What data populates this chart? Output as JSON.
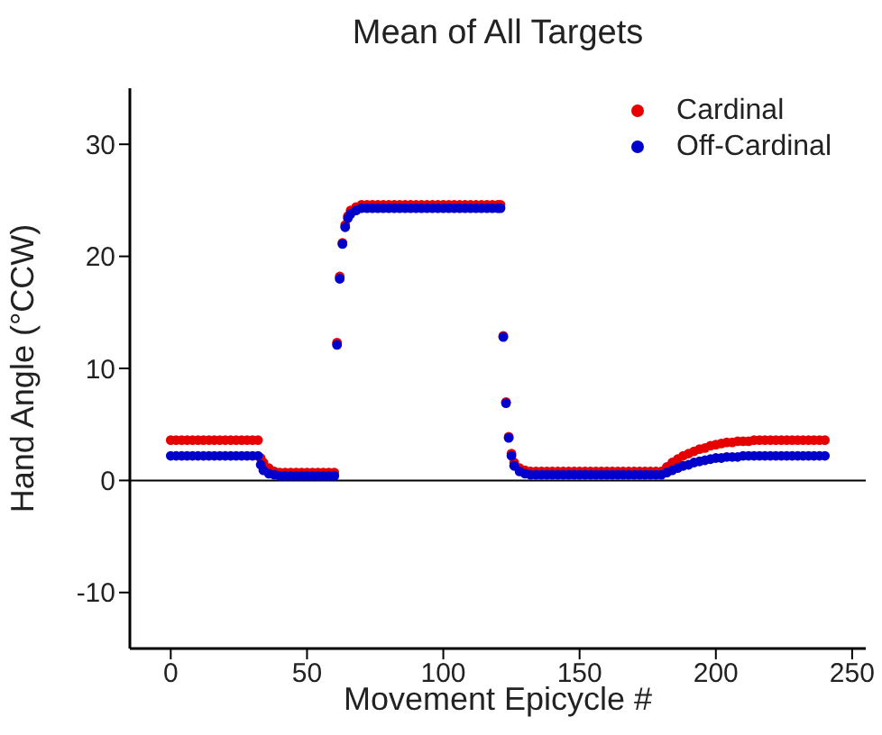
{
  "chart_data": {
    "type": "scatter",
    "title": "Mean of All Targets",
    "xlabel": "Movement Epicycle #",
    "ylabel": "Hand Angle (°CCW)",
    "x": [
      0,
      2,
      4,
      6,
      8,
      10,
      12,
      14,
      16,
      18,
      20,
      22,
      24,
      26,
      28,
      30,
      32,
      33,
      34,
      36,
      38,
      40,
      42,
      44,
      46,
      48,
      50,
      52,
      54,
      56,
      58,
      60,
      61,
      62,
      63,
      64,
      65,
      66,
      68,
      70,
      72,
      74,
      76,
      78,
      80,
      82,
      84,
      86,
      88,
      90,
      92,
      94,
      96,
      98,
      100,
      102,
      104,
      106,
      108,
      110,
      112,
      114,
      116,
      118,
      120,
      121,
      122,
      123,
      124,
      125,
      126,
      128,
      130,
      132,
      134,
      136,
      138,
      140,
      142,
      144,
      146,
      148,
      150,
      152,
      154,
      156,
      158,
      160,
      162,
      164,
      166,
      168,
      170,
      172,
      174,
      176,
      178,
      180,
      182,
      184,
      186,
      188,
      190,
      192,
      194,
      196,
      198,
      200,
      202,
      204,
      206,
      208,
      210,
      212,
      214,
      216,
      218,
      220,
      222,
      224,
      226,
      228,
      230,
      232,
      234,
      236,
      238,
      240
    ],
    "series": [
      {
        "name": "Cardinal",
        "color": "#e60000",
        "values": [
          3.6,
          3.6,
          3.6,
          3.6,
          3.6,
          3.6,
          3.6,
          3.6,
          3.6,
          3.6,
          3.6,
          3.6,
          3.6,
          3.6,
          3.6,
          3.6,
          3.6,
          2.0,
          1.6,
          1.1,
          0.8,
          0.7,
          0.7,
          0.7,
          0.7,
          0.7,
          0.7,
          0.7,
          0.7,
          0.7,
          0.7,
          0.7,
          12.3,
          18.2,
          21.2,
          22.8,
          23.6,
          24.1,
          24.4,
          24.6,
          24.6,
          24.6,
          24.6,
          24.6,
          24.6,
          24.6,
          24.6,
          24.6,
          24.6,
          24.6,
          24.6,
          24.6,
          24.6,
          24.6,
          24.6,
          24.6,
          24.6,
          24.6,
          24.6,
          24.6,
          24.6,
          24.6,
          24.6,
          24.6,
          24.6,
          24.6,
          12.9,
          7.0,
          3.9,
          2.4,
          1.6,
          1.1,
          0.9,
          0.8,
          0.8,
          0.8,
          0.8,
          0.8,
          0.8,
          0.8,
          0.8,
          0.8,
          0.8,
          0.8,
          0.8,
          0.8,
          0.8,
          0.8,
          0.8,
          0.8,
          0.8,
          0.8,
          0.8,
          0.8,
          0.8,
          0.8,
          0.8,
          0.8,
          1.2,
          1.6,
          1.9,
          2.2,
          2.4,
          2.6,
          2.8,
          2.9,
          3.1,
          3.2,
          3.3,
          3.4,
          3.4,
          3.5,
          3.5,
          3.5,
          3.6,
          3.6,
          3.6,
          3.6,
          3.6,
          3.6,
          3.6,
          3.6,
          3.6,
          3.6,
          3.6,
          3.6,
          3.6,
          3.6
        ]
      },
      {
        "name": "Off-Cardinal",
        "color": "#0000cc",
        "values": [
          2.2,
          2.2,
          2.2,
          2.2,
          2.2,
          2.2,
          2.2,
          2.2,
          2.2,
          2.2,
          2.2,
          2.2,
          2.2,
          2.2,
          2.2,
          2.2,
          2.2,
          1.4,
          0.9,
          0.6,
          0.5,
          0.4,
          0.4,
          0.4,
          0.4,
          0.4,
          0.4,
          0.4,
          0.4,
          0.4,
          0.4,
          0.4,
          12.1,
          18.0,
          21.1,
          22.6,
          23.4,
          23.8,
          24.1,
          24.3,
          24.3,
          24.3,
          24.3,
          24.3,
          24.3,
          24.3,
          24.3,
          24.3,
          24.3,
          24.3,
          24.3,
          24.3,
          24.3,
          24.3,
          24.3,
          24.3,
          24.3,
          24.3,
          24.3,
          24.3,
          24.3,
          24.3,
          24.3,
          24.3,
          24.3,
          24.3,
          12.8,
          6.9,
          3.8,
          2.2,
          1.3,
          0.8,
          0.6,
          0.5,
          0.5,
          0.5,
          0.5,
          0.5,
          0.5,
          0.5,
          0.5,
          0.5,
          0.5,
          0.5,
          0.5,
          0.5,
          0.5,
          0.5,
          0.5,
          0.5,
          0.5,
          0.5,
          0.5,
          0.5,
          0.5,
          0.5,
          0.5,
          0.5,
          0.7,
          0.9,
          1.1,
          1.3,
          1.4,
          1.6,
          1.7,
          1.8,
          1.9,
          2.0,
          2.0,
          2.1,
          2.1,
          2.1,
          2.2,
          2.2,
          2.2,
          2.2,
          2.2,
          2.2,
          2.2,
          2.2,
          2.2,
          2.2,
          2.2,
          2.2,
          2.2,
          2.2,
          2.2,
          2.2
        ]
      }
    ],
    "xlim": [
      -15,
      255
    ],
    "xticks": [
      0,
      50,
      100,
      150,
      200,
      250
    ],
    "ylim": [
      -15,
      35
    ],
    "yticks": [
      -10,
      0,
      10,
      20,
      30
    ],
    "ref_lines": [
      {
        "axis": "y",
        "value": 0,
        "color": "#000000"
      }
    ],
    "legend": "top right",
    "marker": "circle",
    "grid": false
  }
}
